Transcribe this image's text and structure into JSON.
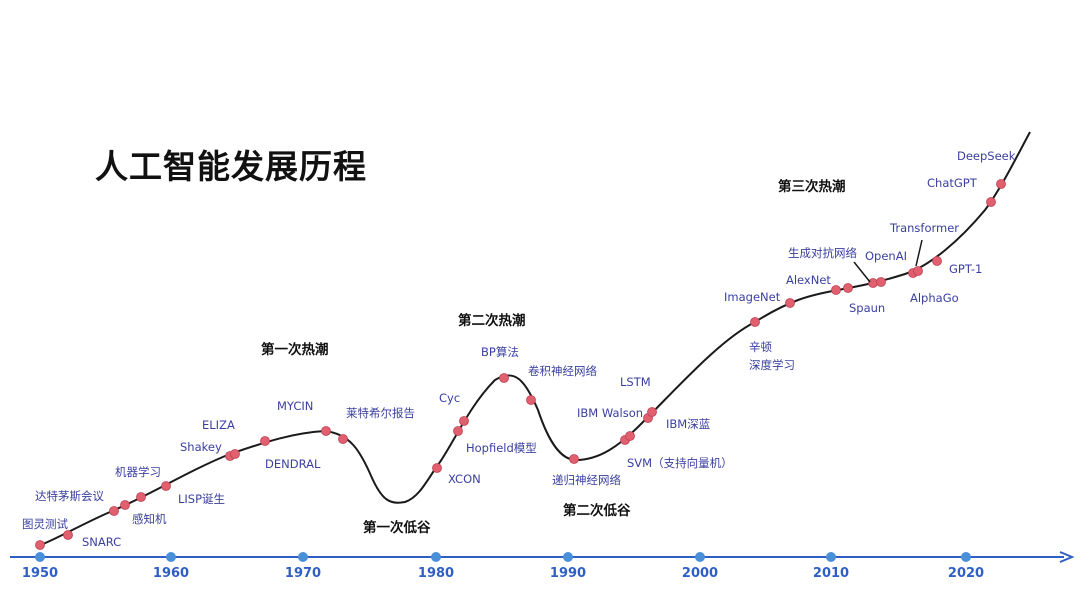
{
  "title": "人工智能发展历程",
  "colors": {
    "curve": "#1a1a1a",
    "axis": "#2f5fc4",
    "year_tick": "#4a90d9",
    "event_dot": "#e06070",
    "label": "#3a3f9e",
    "phase": "#111111"
  },
  "axis_years": [
    "1950",
    "1960",
    "1970",
    "1980",
    "1990",
    "2000",
    "2010",
    "2020"
  ],
  "phases": [
    "第一次热潮",
    "第一次低谷",
    "第二次热潮",
    "第二次低谷",
    "第三次热潮"
  ],
  "events": [
    "图灵测试",
    "SNARC",
    "达特茅斯会议",
    "感知机",
    "机器学习",
    "LISP诞生",
    "Shakey",
    "ELIZA",
    "DENDRAL",
    "MYCIN",
    "莱特希尔报告",
    "XCON",
    "Cyc",
    "Hopfield模型",
    "BP算法",
    "卷积神经网络",
    "递归神经网络",
    "SVM（支持向量机）",
    "IBM Walson",
    "LSTM",
    "IBM深蓝",
    "辛顿",
    "深度学习",
    "ImageNet",
    "AlexNet",
    "生成对抗网络",
    "Spaun",
    "OpenAI",
    "AlphaGo",
    "Transformer",
    "GPT-1",
    "ChatGPT",
    "DeepSeek"
  ]
}
